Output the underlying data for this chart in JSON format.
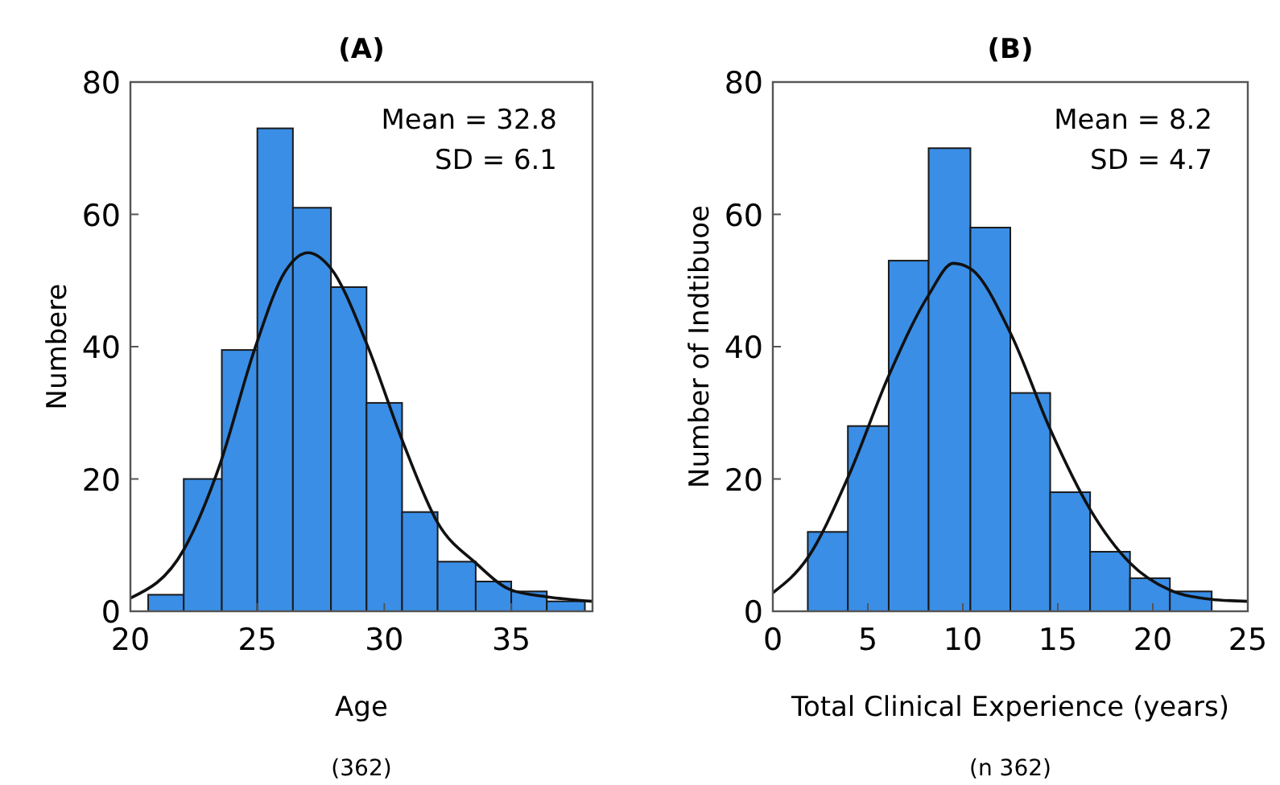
{
  "chart_data": [
    {
      "type": "histogram",
      "title": "(A)",
      "xlabel": "Age",
      "ylabel": "Numbere",
      "annotations": [
        "Mean = 32.8",
        "SD = 6.1",
        "(362)"
      ],
      "xlim": [
        20,
        38.2
      ],
      "xticks": [
        20,
        25,
        30,
        35
      ],
      "ylim": [
        0,
        80
      ],
      "yticks": [
        0,
        20,
        40,
        60,
        80
      ],
      "grid": false,
      "series": [
        {
          "color": "#3a8ee6",
          "bins": [
            20.7,
            22.1,
            23.6,
            25.0,
            26.4,
            27.9,
            29.3,
            30.7,
            32.1,
            33.6,
            35.0,
            36.4,
            37.9
          ],
          "values": [
            2.5,
            20,
            39.5,
            73,
            61,
            49,
            31.5,
            15,
            7.5,
            4.5,
            3,
            1.5
          ]
        },
        {
          "type": "line",
          "color": "#111111",
          "x": [
            20,
            22.1,
            23.5,
            24.9,
            26.1,
            27.0,
            27.9,
            29.3,
            30.7,
            32.1,
            33.6,
            35,
            36.4,
            38.2
          ],
          "values": [
            2,
            9.3,
            21.9,
            39.7,
            51.4,
            54.2,
            51.8,
            40.5,
            25.9,
            13.4,
            7.3,
            3.2,
            2.2,
            1.5
          ]
        }
      ]
    },
    {
      "type": "histogram",
      "title": "(B)",
      "xlabel": "Total Clinical Experience (years)",
      "ylabel": "Number of Indtibuoe",
      "annotations": [
        "Mean = 8.2",
        "SD = 4.7",
        "(n 362)"
      ],
      "xlim": [
        0,
        25
      ],
      "xticks": [
        0,
        5,
        10,
        15,
        20,
        25
      ],
      "ylim": [
        0,
        80
      ],
      "yticks": [
        0,
        20,
        40,
        60,
        80
      ],
      "grid": false,
      "series": [
        {
          "color": "#3a8ee6",
          "bins": [
            1.84,
            3.95,
            6.1,
            8.2,
            10.4,
            12.5,
            14.6,
            16.7,
            18.8,
            20.9,
            23.1
          ],
          "values": [
            12,
            28,
            53,
            70,
            58,
            33,
            18,
            9,
            5,
            3
          ]
        },
        {
          "type": "line",
          "color": "#111111",
          "x": [
            0,
            1.84,
            3.95,
            6.1,
            8.2,
            9.5,
            10.4,
            12.5,
            14.6,
            16.7,
            18.8,
            20.9,
            23.1,
            25
          ],
          "values": [
            2.8,
            8.1,
            20.2,
            35.6,
            47.8,
            52.6,
            51.8,
            42.1,
            27.5,
            15.4,
            7.3,
            3.2,
            1.8,
            1.5
          ]
        }
      ]
    }
  ]
}
